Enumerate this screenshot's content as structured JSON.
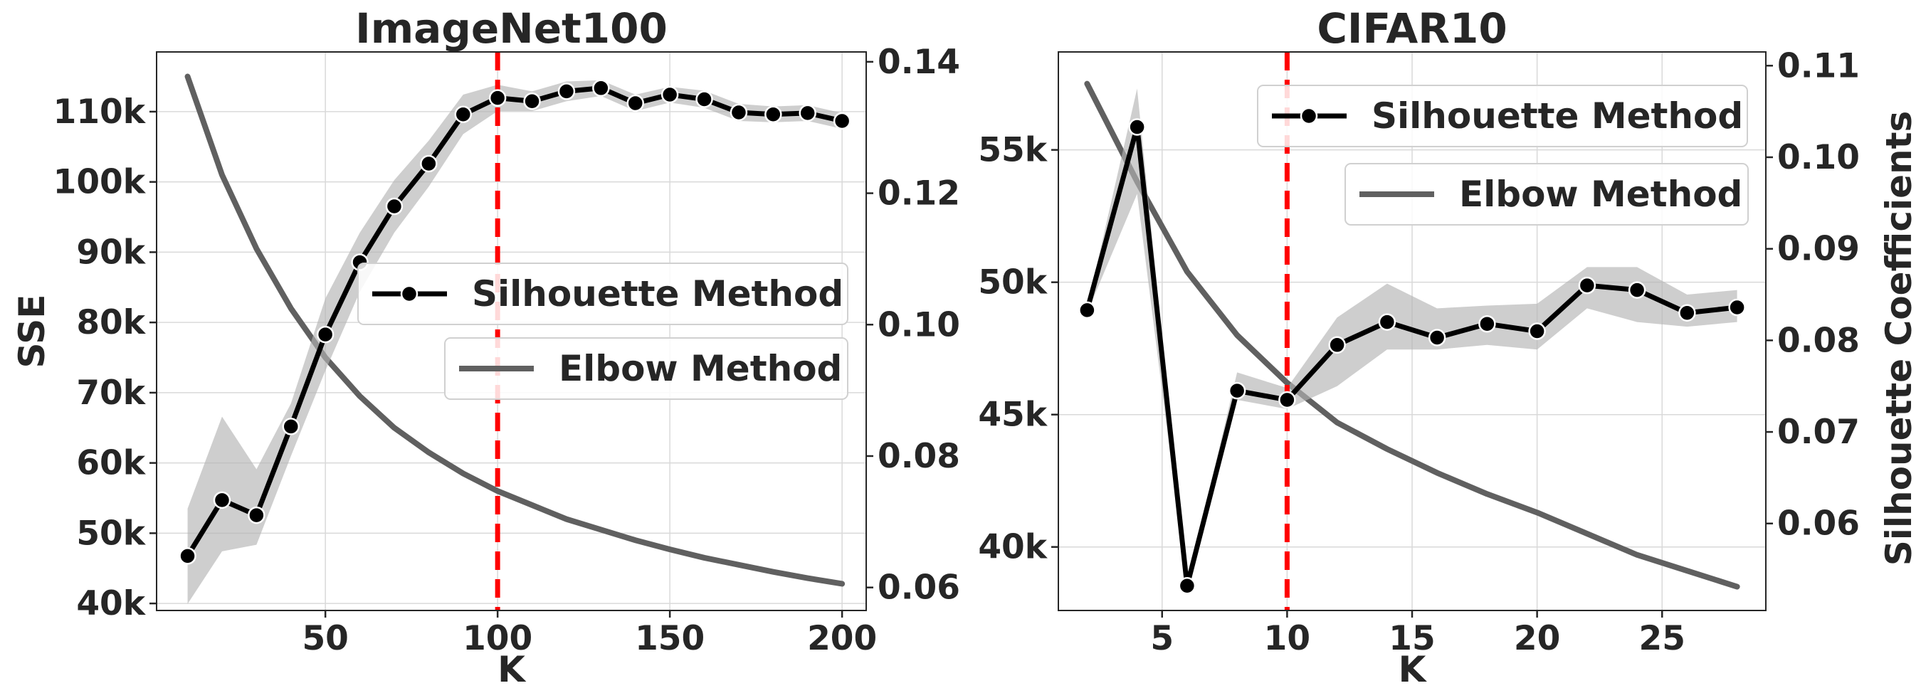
{
  "chart_data": [
    {
      "type": "line",
      "title": "ImageNet100",
      "xlabel": "K",
      "ylabel_left": "SSE",
      "ylabel_right": "",
      "x_ticks": [
        50,
        100,
        150,
        200
      ],
      "xlim": [
        1,
        207
      ],
      "left_ticks": [
        40000,
        50000,
        60000,
        70000,
        80000,
        90000,
        100000,
        110000
      ],
      "left_tick_labels": [
        "40k",
        "50k",
        "60k",
        "70k",
        "80k",
        "90k",
        "100k",
        "110k"
      ],
      "left_ylim": [
        39000,
        118500
      ],
      "right_ticks": [
        0.06,
        0.08,
        0.1,
        0.12,
        0.14
      ],
      "right_tick_labels": [
        "0.06",
        "0.08",
        "0.10",
        "0.12",
        "0.14"
      ],
      "right_ylim": [
        0.0565,
        0.1415
      ],
      "vline_x": 100,
      "grid": true,
      "series": [
        {
          "name": "Silhouette Method",
          "axis": "right",
          "color": "#000000",
          "marker": "circle",
          "x": [
            10,
            20,
            30,
            40,
            50,
            60,
            70,
            80,
            90,
            100,
            110,
            120,
            130,
            140,
            150,
            160,
            170,
            180,
            190,
            200
          ],
          "y": [
            0.0648,
            0.0733,
            0.071,
            0.0845,
            0.0985,
            0.1095,
            0.118,
            0.1245,
            0.132,
            0.1345,
            0.134,
            0.1355,
            0.136,
            0.1337,
            0.135,
            0.1343,
            0.1323,
            0.132,
            0.1322,
            0.131
          ],
          "band_low": [
            0.0575,
            0.0655,
            0.0665,
            0.08,
            0.093,
            0.105,
            0.114,
            0.121,
            0.129,
            0.1325,
            0.1325,
            0.134,
            0.1348,
            0.1325,
            0.1338,
            0.133,
            0.131,
            0.1308,
            0.131,
            0.1298
          ],
          "band_high": [
            0.072,
            0.086,
            0.078,
            0.088,
            0.104,
            0.114,
            0.122,
            0.128,
            0.135,
            0.1365,
            0.1355,
            0.137,
            0.1372,
            0.135,
            0.1362,
            0.1356,
            0.1336,
            0.1332,
            0.1334,
            0.1322
          ]
        },
        {
          "name": "Elbow Method",
          "axis": "left",
          "color": "#606060",
          "x": [
            10,
            20,
            30,
            40,
            50,
            60,
            70,
            80,
            90,
            100,
            110,
            120,
            130,
            140,
            150,
            160,
            170,
            180,
            190,
            200
          ],
          "y": [
            115000,
            101000,
            90500,
            82000,
            75000,
            69500,
            65000,
            61500,
            58500,
            56000,
            54000,
            52000,
            50500,
            49000,
            47700,
            46500,
            45500,
            44500,
            43600,
            42800
          ]
        }
      ],
      "legend": [
        {
          "label": "Silhouette Method",
          "placement": "center-right"
        },
        {
          "label": "Elbow Method",
          "placement": "center-right"
        }
      ]
    },
    {
      "type": "line",
      "title": "CIFAR10",
      "xlabel": "K",
      "ylabel_left": "",
      "ylabel_right": "Silhouette Coefficients",
      "x_ticks": [
        5,
        10,
        15,
        20,
        25
      ],
      "xlim": [
        0.85,
        29.15
      ],
      "left_ticks": [
        40000,
        45000,
        50000,
        55000
      ],
      "left_tick_labels": [
        "40k",
        "45k",
        "50k",
        "55k"
      ],
      "left_ylim": [
        37600,
        58700
      ],
      "right_ticks": [
        0.06,
        0.07,
        0.08,
        0.09,
        0.1,
        0.11
      ],
      "right_tick_labels": [
        "0.06",
        "0.07",
        "0.08",
        "0.09",
        "0.10",
        "0.11"
      ],
      "right_ylim": [
        0.0505,
        0.1115
      ],
      "vline_x": 10,
      "grid": true,
      "series": [
        {
          "name": "Silhouette Method",
          "axis": "right",
          "color": "#000000",
          "marker": "circle",
          "x": [
            2,
            4,
            6,
            8,
            10,
            12,
            14,
            16,
            18,
            20,
            22,
            24,
            26,
            28
          ],
          "y": [
            0.0833,
            0.1033,
            0.0532,
            0.0745,
            0.0735,
            0.0795,
            0.082,
            0.0803,
            0.0818,
            0.081,
            0.086,
            0.0855,
            0.083,
            0.0836
          ],
          "band_low": [
            0.083,
            0.096,
            0.053,
            0.0735,
            0.0725,
            0.075,
            0.079,
            0.079,
            0.0795,
            0.079,
            0.0835,
            0.082,
            0.0815,
            0.082
          ],
          "band_high": [
            0.0836,
            0.1075,
            0.0534,
            0.0765,
            0.0748,
            0.0825,
            0.0862,
            0.0835,
            0.0838,
            0.084,
            0.088,
            0.088,
            0.085,
            0.0855
          ]
        },
        {
          "name": "Elbow Method",
          "axis": "left",
          "color": "#606060",
          "x": [
            2,
            4,
            6,
            8,
            10,
            12,
            14,
            16,
            18,
            20,
            22,
            24,
            26,
            28
          ],
          "y": [
            57500,
            53800,
            50400,
            48000,
            46200,
            44700,
            43700,
            42800,
            42000,
            41300,
            40500,
            39700,
            39100,
            38500
          ]
        }
      ],
      "legend": [
        {
          "label": "Silhouette Method",
          "placement": "upper-right"
        },
        {
          "label": "Elbow Method",
          "placement": "upper-right"
        }
      ]
    }
  ]
}
